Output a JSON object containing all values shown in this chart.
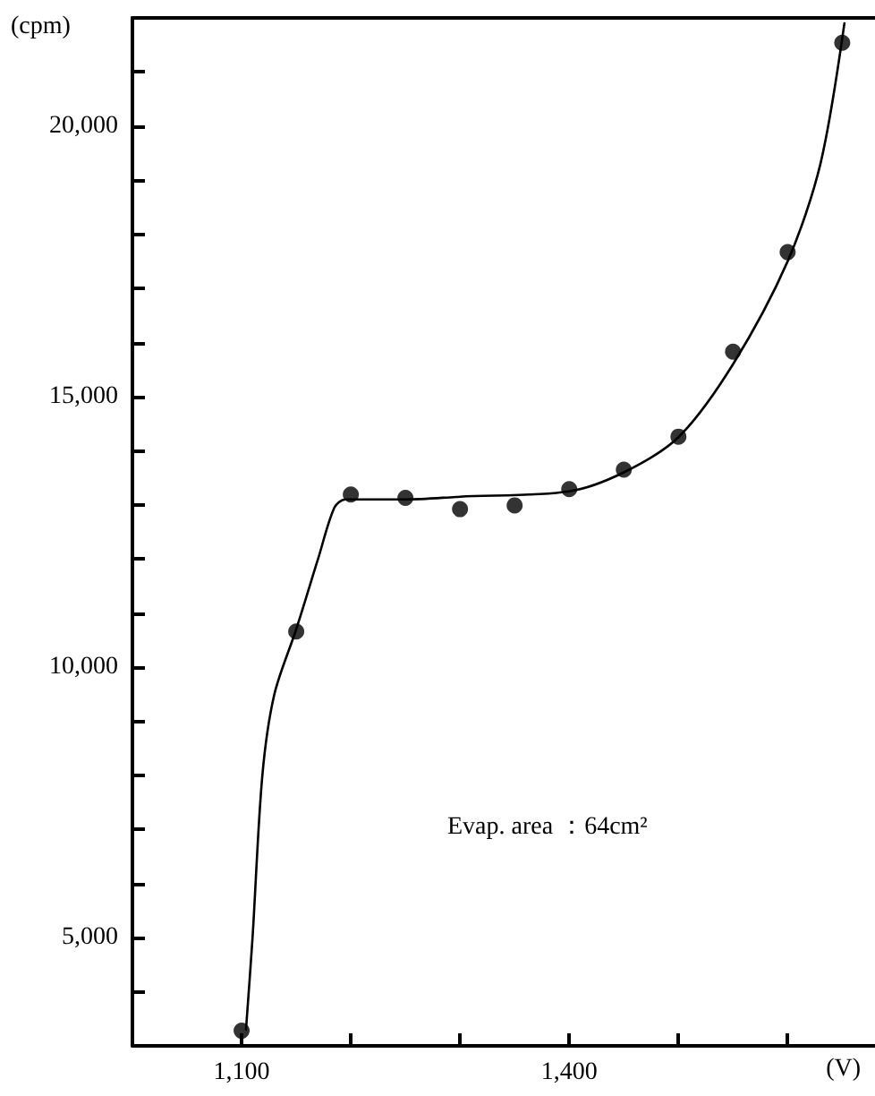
{
  "chart_data": {
    "type": "scatter",
    "xlabel": "(V)",
    "ylabel": "(cpm)",
    "annotations": [
      "Evap. area ：64cm²"
    ],
    "xlim": [
      1000,
      1680
    ],
    "ylim": [
      3000,
      22000
    ],
    "xticks": [
      {
        "value": 1100,
        "label": "1,100"
      },
      {
        "value": 1200,
        "label": null
      },
      {
        "value": 1300,
        "label": null
      },
      {
        "value": 1400,
        "label": "1,400"
      },
      {
        "value": 1500,
        "label": null
      },
      {
        "value": 1600,
        "label": null
      }
    ],
    "yticks": [
      {
        "value": 4000,
        "label": null
      },
      {
        "value": 5000,
        "label": "5,000"
      },
      {
        "value": 6000,
        "label": null
      },
      {
        "value": 7000,
        "label": null
      },
      {
        "value": 8000,
        "label": null
      },
      {
        "value": 9000,
        "label": null
      },
      {
        "value": 10000,
        "label": "10,000"
      },
      {
        "value": 11000,
        "label": null
      },
      {
        "value": 12000,
        "label": null
      },
      {
        "value": 13000,
        "label": null
      },
      {
        "value": 14000,
        "label": null
      },
      {
        "value": 15000,
        "label": "15,000"
      },
      {
        "value": 16000,
        "label": null
      },
      {
        "value": 17000,
        "label": null
      },
      {
        "value": 18000,
        "label": null
      },
      {
        "value": 19000,
        "label": null
      },
      {
        "value": 20000,
        "label": "20,000"
      },
      {
        "value": 21000,
        "label": null
      }
    ],
    "grid": false,
    "marker": "circle",
    "series": [
      {
        "color": "#000000",
        "x": [
          1100,
          1150,
          1200,
          1250,
          1300,
          1350,
          1400,
          1450,
          1500,
          1550,
          1600,
          1650
        ],
        "values": [
          3280,
          10660,
          13190,
          13130,
          12920,
          12990,
          13290,
          13650,
          14260,
          15830,
          17670,
          21540
        ]
      },
      {
        "type": "line",
        "color": "#000000",
        "line_style": "solid",
        "marker": "none",
        "x": [
          1104,
          1110,
          1119,
          1130,
          1150,
          1170,
          1185,
          1195,
          1250,
          1300,
          1400,
          1450,
          1500,
          1550,
          1600,
          1630,
          1652
        ],
        "values": [
          3300,
          5000,
          8000,
          9500,
          10700,
          12000,
          12950,
          13100,
          13100,
          13150,
          13250,
          13600,
          14250,
          15600,
          17500,
          19300,
          21900
        ]
      }
    ]
  }
}
